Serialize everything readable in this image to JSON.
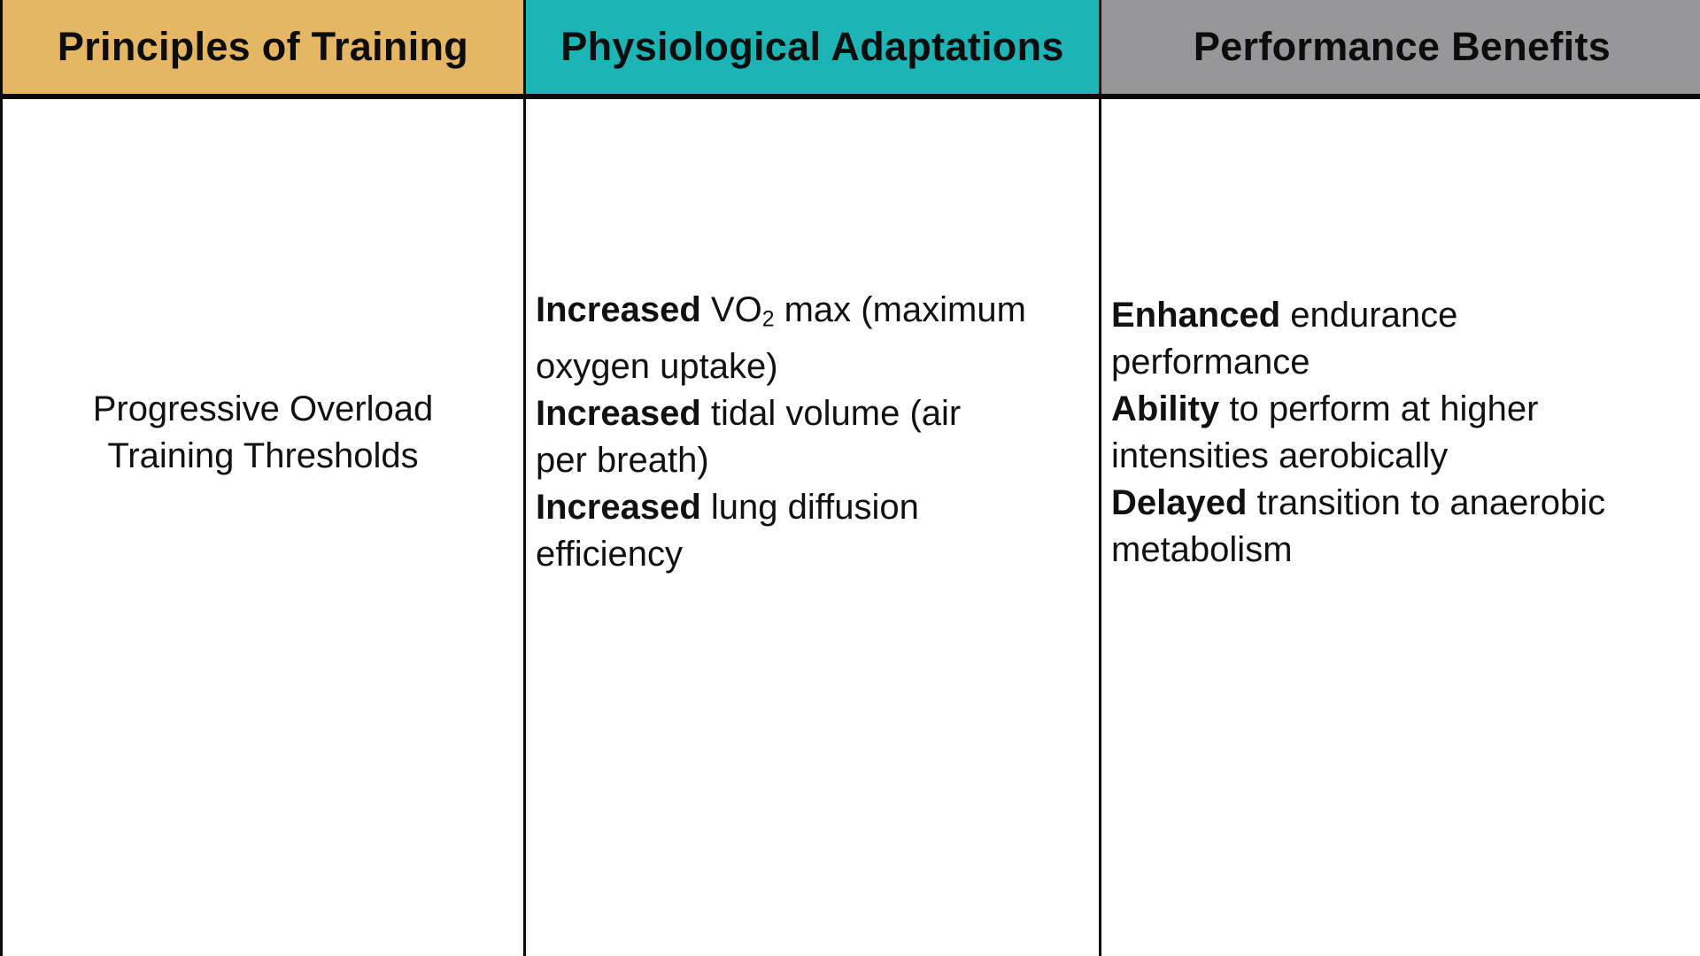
{
  "table": {
    "colors": {
      "header_tan": "#E5B663",
      "header_teal": "#1CB4B4",
      "header_gray": "#97979A",
      "border": "#0B0B0B",
      "body_bg": "#FFFFFF",
      "text": "#111111"
    },
    "headers": [
      {
        "id": "principles",
        "label": "Principles of Training"
      },
      {
        "id": "adaptations",
        "label": "Physiological Adaptations"
      },
      {
        "id": "benefits",
        "label": "Performance Benefits"
      }
    ],
    "row": {
      "principles": {
        "lines": [
          [
            {
              "t": "Progressive Overload"
            }
          ],
          [
            {
              "t": "Training Thresholds"
            }
          ]
        ]
      },
      "adaptations": {
        "lines": [
          [
            {
              "t": "Increased",
              "b": true
            },
            {
              "t": " VO"
            },
            {
              "t": "2",
              "sub": true
            },
            {
              "t": " max (maximum"
            }
          ],
          [
            {
              "t": "oxygen uptake)"
            }
          ],
          [
            {
              "t": "Increased",
              "b": true
            },
            {
              "t": " tidal volume (air"
            }
          ],
          [
            {
              "t": "per breath)"
            }
          ],
          [
            {
              "t": "Increased",
              "b": true
            },
            {
              "t": " lung diffusion"
            }
          ],
          [
            {
              "t": "efficiency"
            }
          ]
        ]
      },
      "benefits": {
        "lines": [
          [
            {
              "t": "Enhanced",
              "b": true
            },
            {
              "t": " endurance"
            }
          ],
          [
            {
              "t": "performance"
            }
          ],
          [
            {
              "t": "Ability",
              "b": true
            },
            {
              "t": " to perform at higher"
            }
          ],
          [
            {
              "t": "intensities aerobically"
            }
          ],
          [
            {
              "t": "Delayed",
              "b": true
            },
            {
              "t": " transition to anaerobic"
            }
          ],
          [
            {
              "t": "metabolism"
            }
          ]
        ]
      }
    }
  }
}
